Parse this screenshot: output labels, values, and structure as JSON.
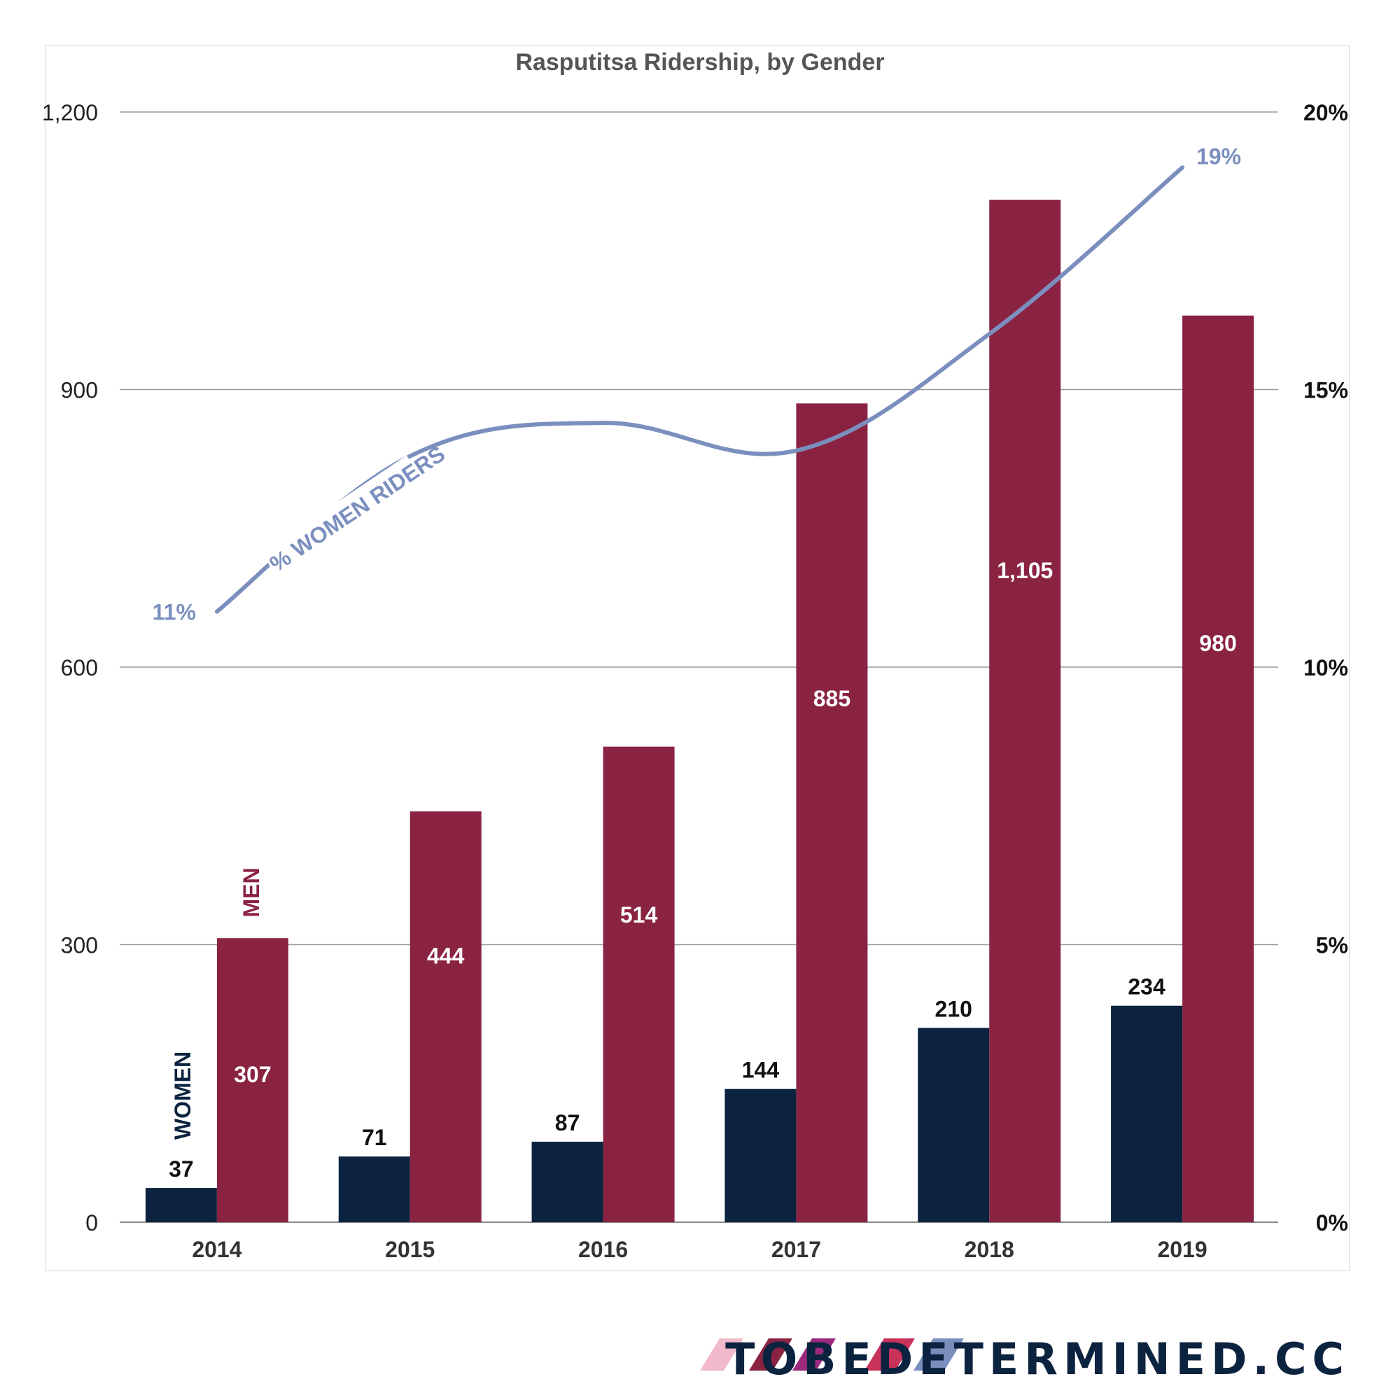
{
  "chart_data": {
    "type": "bar",
    "title": "Rasputitsa Ridership, by Gender",
    "categories": [
      "2014",
      "2015",
      "2016",
      "2017",
      "2018",
      "2019"
    ],
    "series": [
      {
        "name": "WOMEN",
        "values": [
          37,
          71,
          87,
          144,
          210,
          234
        ],
        "color": "#0c2340"
      },
      {
        "name": "MEN",
        "values": [
          307,
          444,
          514,
          885,
          1105,
          980
        ],
        "color": "#8a2342"
      }
    ],
    "line_series": {
      "name": "% WOMEN RIDERS",
      "values": [
        11,
        13.8,
        14.4,
        13.9,
        16.0,
        19
      ],
      "color": "#7b8fbf",
      "start_label": "11%",
      "end_label": "19%"
    },
    "ylim": [
      0,
      1200
    ],
    "yticks": [
      "0",
      "300",
      "600",
      "900",
      "1,200"
    ],
    "y2lim": [
      0,
      20
    ],
    "y2ticks": [
      "0%",
      "5%",
      "10%",
      "15%",
      "20%"
    ],
    "data_labels": {
      "women": [
        "37",
        "71",
        "87",
        "144",
        "210",
        "234"
      ],
      "men": [
        "307",
        "444",
        "514",
        "885",
        "1,105",
        "980"
      ]
    },
    "grid": true
  },
  "footer": {
    "brand": "TOBEDETERMINED.CC",
    "stripe_colors": [
      "#f2b8cc",
      "#8a2342",
      "#9b2a7d",
      "#c9335b",
      "#7b8fbf"
    ]
  }
}
